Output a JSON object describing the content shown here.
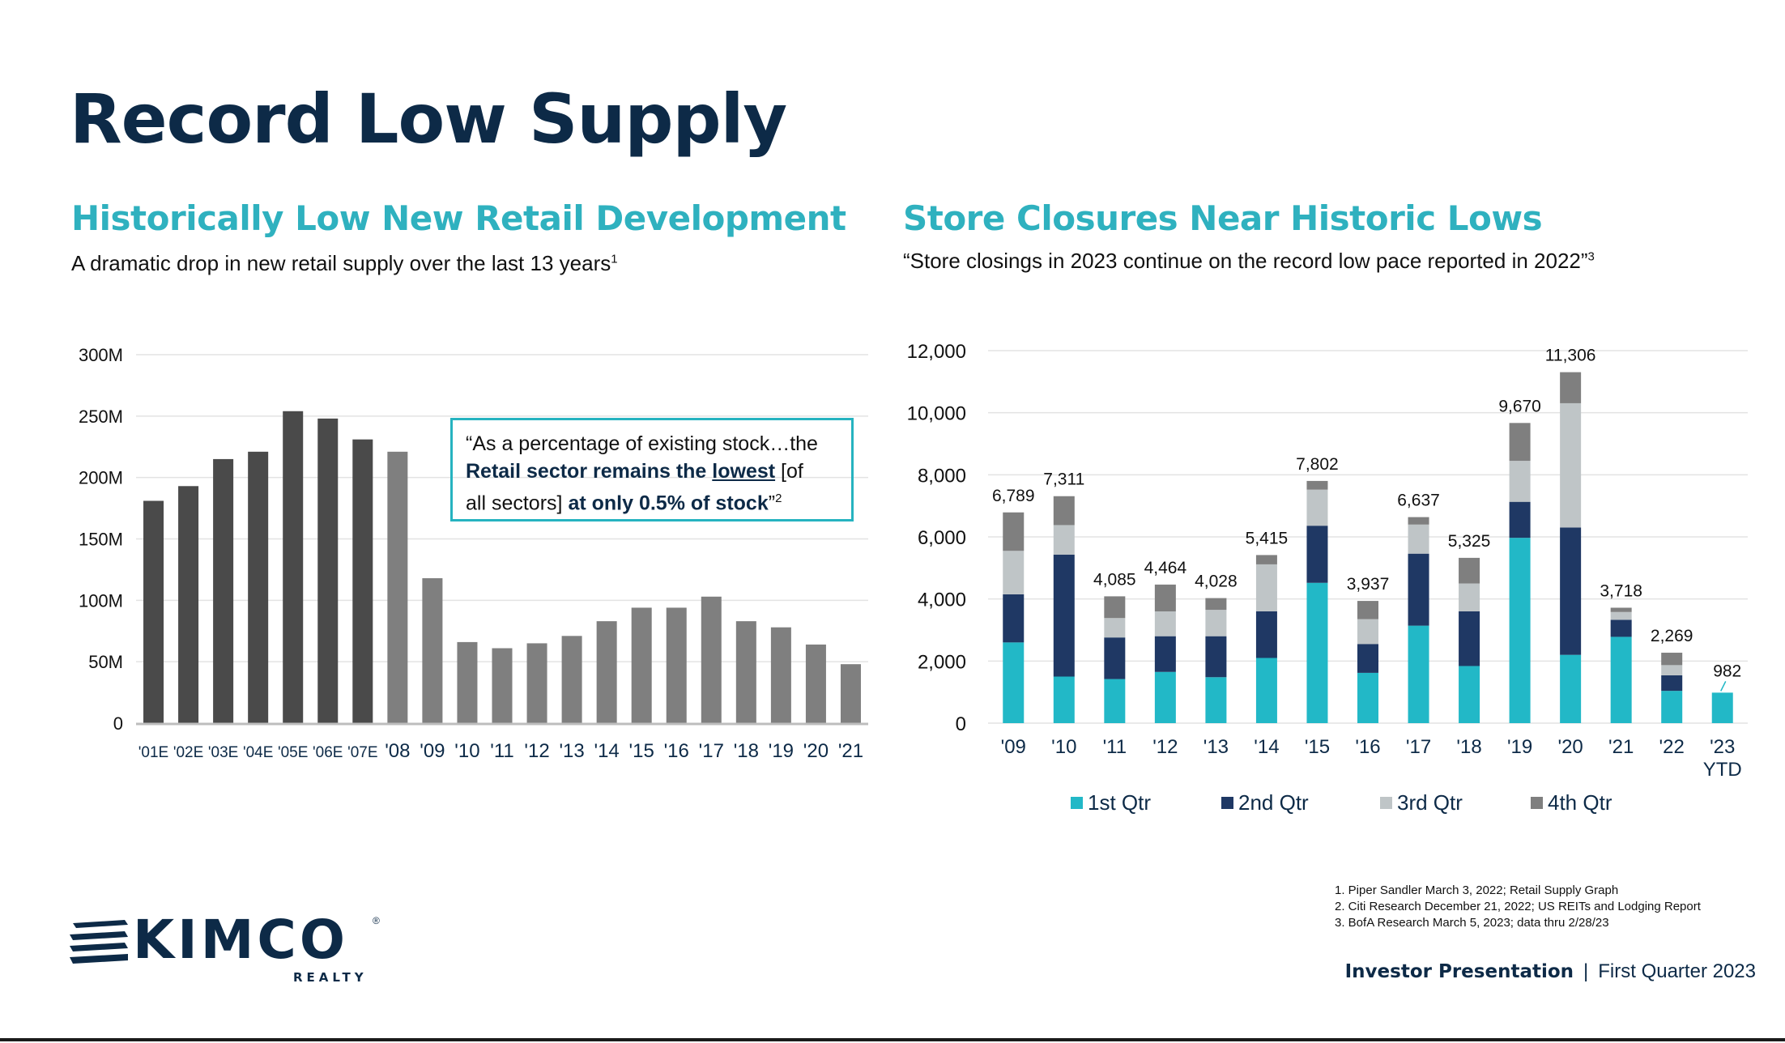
{
  "title": "Record Low Supply",
  "left_panel": {
    "heading": "Historically Low New Retail Development",
    "subtitle": "A dramatic drop in new retail supply over the last 13 years",
    "subtitle_ref": "1",
    "quote": {
      "line1": "“As a percentage of existing stock…the",
      "bold1": "Retail sector remains the",
      "underlined": "lowest",
      "rest1": "[of",
      "line3_start": "all sectors]",
      "bold2": "at only 0.5% of stock",
      "end": "”",
      "ref": "2"
    }
  },
  "right_panel": {
    "heading": "Store Closures Near Historic Lows",
    "subtitle": "“Store closings in 2023 continue on the record low pace reported in 2022”",
    "subtitle_ref": "3"
  },
  "colors": {
    "dark_bar": "#4a4a4a",
    "light_bar": "#7f7f7f",
    "q1": "#22b8c7",
    "q2": "#1f3864",
    "q3": "#bfc5c7",
    "q4": "#7f7f7f",
    "accent": "#2fb1bf",
    "navy": "#0d2a47"
  },
  "chart_data": [
    {
      "type": "bar",
      "title": "Historically Low New Retail Development",
      "categories": [
        "'01E",
        "'02E",
        "'03E",
        "'04E",
        "'05E",
        "'06E",
        "'07E",
        "'08",
        "'09",
        "'10",
        "'11",
        "'12",
        "'13",
        "'14",
        "'15",
        "'16",
        "'17",
        "'18",
        "'19",
        "'20",
        "'21"
      ],
      "values": [
        181,
        193,
        215,
        221,
        254,
        248,
        231,
        221,
        118,
        66,
        61,
        65,
        71,
        83,
        94,
        94,
        103,
        83,
        78,
        64,
        48
      ],
      "estimated": [
        true,
        true,
        true,
        true,
        true,
        true,
        true,
        false,
        false,
        false,
        false,
        false,
        false,
        false,
        false,
        false,
        false,
        false,
        false,
        false,
        false
      ],
      "ylim": [
        0,
        300
      ],
      "yticks": [
        0,
        50,
        100,
        150,
        200,
        250,
        300
      ],
      "ytick_labels": [
        "0",
        "50M",
        "100M",
        "150M",
        "200M",
        "250M",
        "300M"
      ],
      "xlabel": "",
      "ylabel": ""
    },
    {
      "type": "bar",
      "stacked": true,
      "title": "Store Closures Near Historic Lows",
      "categories": [
        "'09",
        "'10",
        "'11",
        "'12",
        "'13",
        "'14",
        "'15",
        "'16",
        "'17",
        "'18",
        "'19",
        "'20",
        "'21",
        "'22",
        "'23 YTD"
      ],
      "series": [
        {
          "name": "1st Qtr",
          "values": [
            2600,
            1500,
            1420,
            1650,
            1480,
            2100,
            4520,
            1620,
            3140,
            1840,
            5970,
            2200,
            2780,
            1040,
            982
          ]
        },
        {
          "name": "2nd Qtr",
          "values": [
            1550,
            3930,
            1340,
            1150,
            1320,
            1500,
            1840,
            930,
            2320,
            1760,
            1160,
            4100,
            550,
            500,
            0
          ]
        },
        {
          "name": "3rd Qtr",
          "values": [
            1400,
            950,
            625,
            800,
            850,
            1515,
            1162,
            800,
            937,
            900,
            1320,
            4006,
            250,
            329,
            0
          ]
        },
        {
          "name": "4th Qtr",
          "values": [
            1239,
            931,
            700,
            864,
            378,
            300,
            280,
            587,
            240,
            825,
            1220,
            1000,
            138,
            400,
            0
          ]
        }
      ],
      "totals": [
        6789,
        7311,
        4085,
        4464,
        4028,
        5415,
        7802,
        3937,
        6637,
        5325,
        9670,
        11306,
        3718,
        2269,
        982
      ],
      "total_labels": [
        "6,789",
        "7,311",
        "4,085",
        "4,464",
        "4,028",
        "5,415",
        "7,802",
        "3,937",
        "6,637",
        "5,325",
        "9,670",
        "11,306",
        "3,718",
        "2,269",
        "982"
      ],
      "ylim": [
        0,
        12000
      ],
      "yticks": [
        0,
        2000,
        4000,
        6000,
        8000,
        10000,
        12000
      ],
      "ytick_labels": [
        "0",
        "2,000",
        "4,000",
        "6,000",
        "8,000",
        "10,000",
        "12,000"
      ],
      "legend": "bottom",
      "xlabel": "",
      "ylabel": ""
    }
  ],
  "footnotes": [
    "1. Piper Sandler March 3, 2022; Retail Supply Graph",
    "2. Citi Research December 21, 2022; US REITs and Lodging Report",
    "3. BofA Research March 5, 2023; data thru 2/28/23"
  ],
  "footer": {
    "label": "Investor Presentation",
    "separator": "|",
    "period": "First Quarter 2023"
  },
  "logo": {
    "name": "KIMCO",
    "sub": "REALTY",
    "registered": "®"
  }
}
